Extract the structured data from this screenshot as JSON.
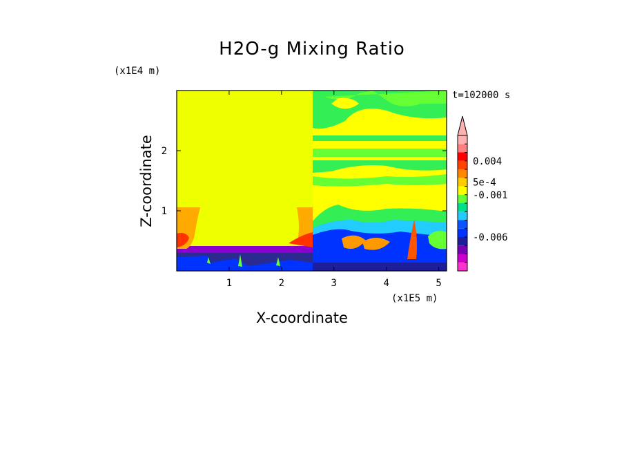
{
  "chart_data": {
    "type": "heatmap",
    "title": "H2O-g Mixing Ratio",
    "xlabel": "X-coordinate",
    "ylabel": "Z-coordinate",
    "x_scale_label": "(x1E5 m)",
    "y_scale_label": "(x1E4 m)",
    "time_label": "t=102000 s",
    "xlim": [
      0,
      5.15
    ],
    "ylim": [
      0,
      3.0
    ],
    "x_ticks": [
      "1",
      "2",
      "3",
      "4",
      "5"
    ],
    "y_ticks": [
      "1",
      "2"
    ],
    "colorbar": {
      "tick_labels": [
        "0.004",
        "5e-4",
        "-0.001",
        "-0.006"
      ],
      "colors": [
        "#ff33cc",
        "#cc00cc",
        "#7a00b3",
        "#1e1e9a",
        "#0033ff",
        "#0a55ff",
        "#22ccff",
        "#00e08a",
        "#66ff33",
        "#ffff00",
        "#ffcc00",
        "#ff8800",
        "#ff4400",
        "#ff0000",
        "#ff8080",
        "#ffb0b0"
      ]
    },
    "colors": {
      "background_left": "#eeff00",
      "background_right": "#ffff00",
      "green": "#33ee55",
      "cyan": "#22ccff",
      "blue": "#0033ff",
      "purple": "#8a00cc",
      "dark_blue": "#2a2a90",
      "orange": "#ff9900",
      "red": "#ff3300"
    }
  }
}
